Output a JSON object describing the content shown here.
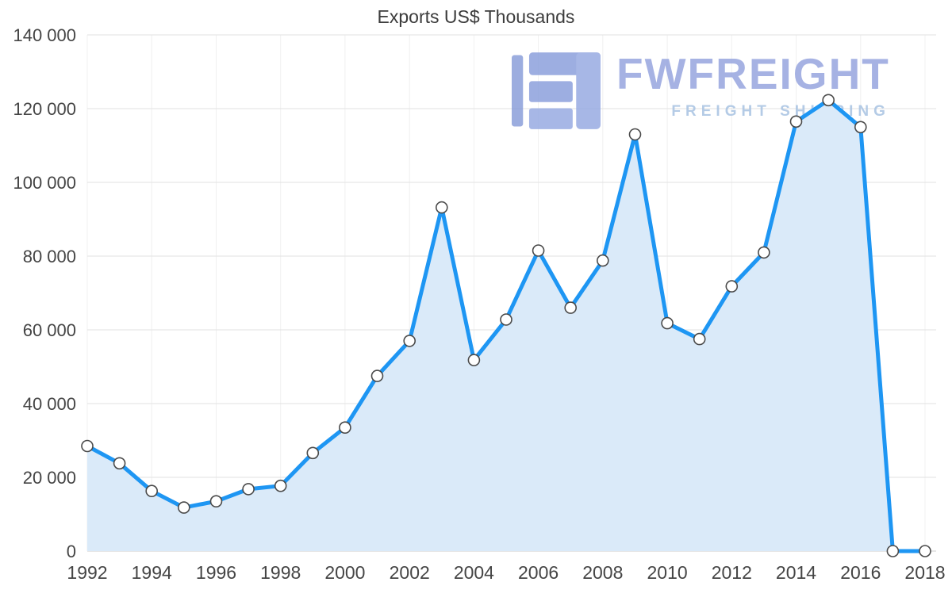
{
  "chart_data": {
    "type": "area",
    "title": "Exports US$ Thousands",
    "x": [
      1992,
      1993,
      1994,
      1995,
      1996,
      1997,
      1998,
      1999,
      2000,
      2001,
      2002,
      2003,
      2004,
      2005,
      2006,
      2007,
      2008,
      2009,
      2010,
      2011,
      2012,
      2013,
      2014,
      2015,
      2016,
      2017,
      2018
    ],
    "values": [
      28500,
      23800,
      16300,
      11800,
      13500,
      16800,
      17700,
      26600,
      33500,
      47500,
      57000,
      93200,
      51800,
      62800,
      81500,
      66000,
      78800,
      113000,
      61800,
      57500,
      71800,
      81000,
      116500,
      122300,
      115000,
      0,
      0
    ],
    "xlabel": "",
    "ylabel": "",
    "ylim": [
      0,
      140000
    ],
    "yticks": [
      0,
      20000,
      40000,
      60000,
      80000,
      100000,
      120000,
      140000
    ],
    "ytick_labels": [
      "0",
      "20 000",
      "40 000",
      "60 000",
      "80 000",
      "100 000",
      "120 000",
      "140 000"
    ],
    "xticks": [
      1992,
      1994,
      1996,
      1998,
      2000,
      2002,
      2004,
      2006,
      2008,
      2010,
      2012,
      2014,
      2016,
      2018
    ],
    "grid": true,
    "legend": "none",
    "colors": {
      "line": "#1e96f3",
      "fill": "#daeaf9",
      "marker_fill": "#ffffff",
      "marker_stroke": "#4a4a4a",
      "hgrid": "#e2e2e2",
      "vgrid": "#f0f0f0",
      "baseline": "#cccccc",
      "axis_text": "#454545",
      "title_text": "#3c3c3c"
    }
  },
  "watermark": {
    "brand": "FWFREIGHT",
    "tagline": "FREIGHT SHIPPING",
    "logo_color": "#8ca0dc"
  }
}
